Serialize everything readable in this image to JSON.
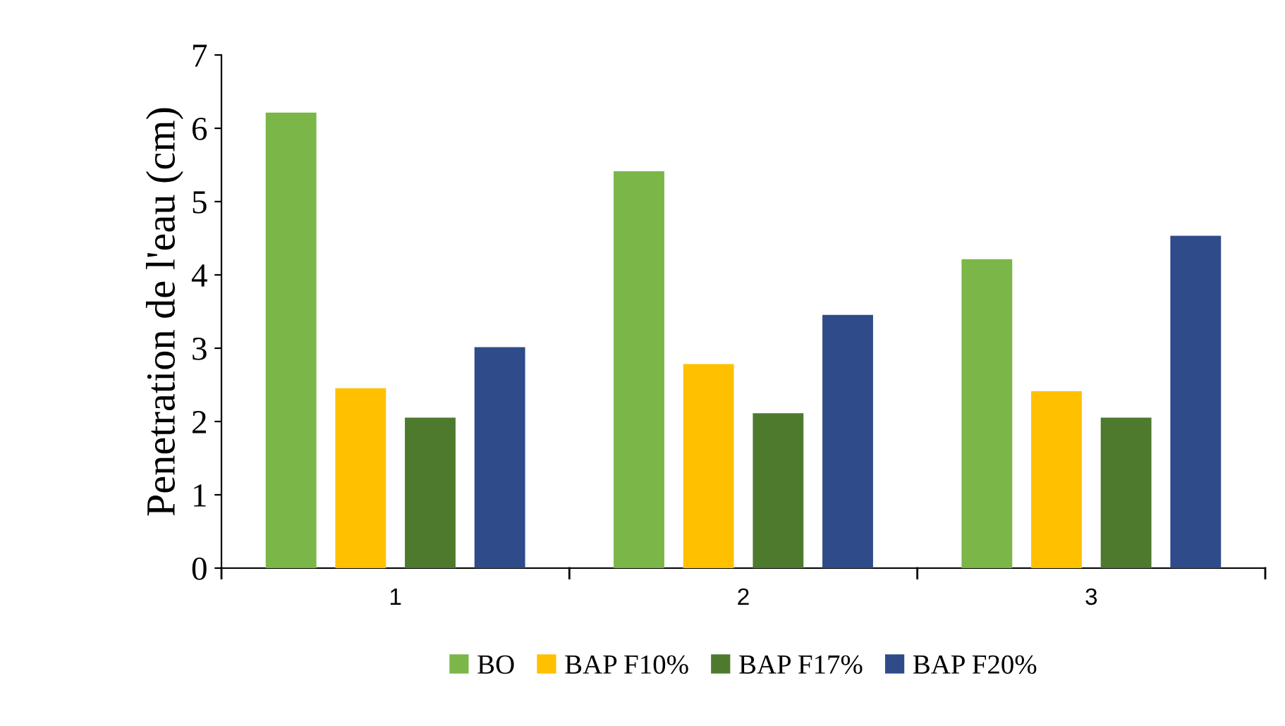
{
  "chart_data": {
    "type": "bar",
    "ylabel": "Penetration de l'eau (cm)",
    "categories": [
      "1",
      "2",
      "3"
    ],
    "series": [
      {
        "name": "BO",
        "color": "#7ab648",
        "values": [
          6.2,
          5.4,
          4.2
        ]
      },
      {
        "name": "BAP F10%",
        "color": "#ffc000",
        "values": [
          2.44,
          2.77,
          2.4
        ]
      },
      {
        "name": "BAP F17%",
        "color": "#4e7a2e",
        "values": [
          2.04,
          2.1,
          2.04
        ]
      },
      {
        "name": "BAP F20%",
        "color": "#2f4b8a",
        "values": [
          3.0,
          3.44,
          4.52
        ]
      }
    ],
    "ylim": [
      0,
      7
    ],
    "yticks": [
      0,
      1,
      2,
      3,
      4,
      5,
      6,
      7
    ],
    "legend": "bottom"
  }
}
